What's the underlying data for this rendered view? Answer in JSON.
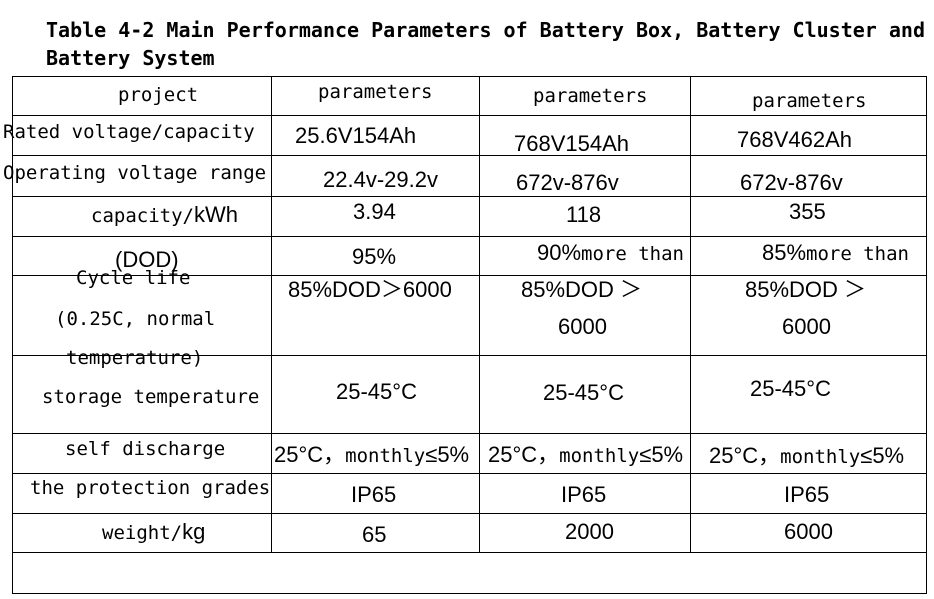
{
  "title": {
    "line1": "Table 4-2 Main Performance Parameters of Battery Box, Battery Cluster and",
    "line2": "Battery System"
  },
  "table": {
    "headers": [
      "project",
      "parameters",
      "parameters",
      "parameters"
    ],
    "rows": [
      {
        "label": "Rated voltage/capacity",
        "values": [
          "25.6V154Ah",
          "768V154Ah",
          "768V462Ah"
        ]
      },
      {
        "label": "Operating voltage range",
        "values": [
          "22.4v-29.2v",
          "672v-876v",
          "672v-876v"
        ]
      },
      {
        "label_a": "capacity/",
        "label_b": "kWh",
        "values": [
          "3.94",
          "118",
          "355"
        ]
      },
      {
        "label": "(DOD)",
        "values": [
          "95%"
        ],
        "values_mixed": [
          {
            "a": "90%",
            "b": "more than"
          },
          {
            "a": "85%",
            "b": "more than"
          }
        ]
      },
      {
        "label_lines": [
          "Cycle life",
          "(0.25C, normal",
          "temperature)"
        ],
        "values": [
          "85%DOD＞6000"
        ],
        "values_split": [
          {
            "line1": "85%DOD ＞",
            "line2": "6000"
          },
          {
            "line1": "85%DOD ＞",
            "line2": "6000"
          }
        ]
      },
      {
        "label": "storage temperature",
        "values": [
          "25-45°C",
          "25-45°C",
          "25-45°C"
        ]
      },
      {
        "label": "self discharge",
        "value_parts": {
          "a": "25°C，",
          "b": "monthly",
          "c": "≤5%"
        }
      },
      {
        "label": "the protection grades",
        "values": [
          "IP65",
          "IP65",
          "IP65"
        ]
      },
      {
        "label_a": "weight/",
        "label_b": "kg",
        "values": [
          "65",
          "2000",
          "6000"
        ]
      }
    ]
  }
}
